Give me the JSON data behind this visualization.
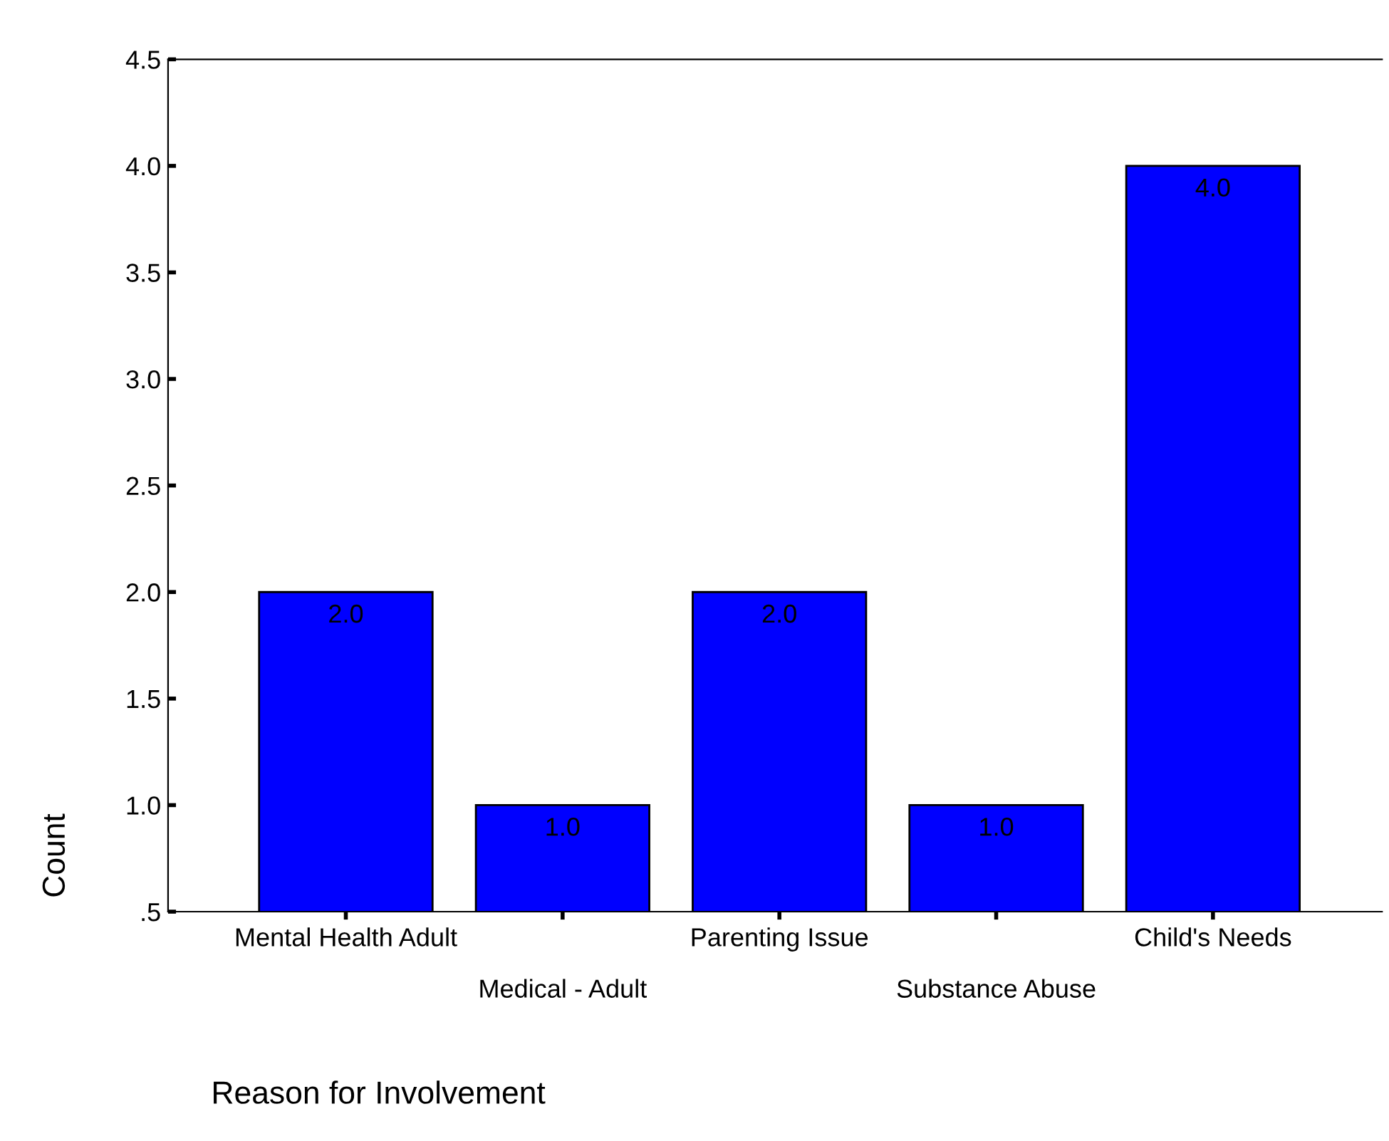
{
  "chart_data": {
    "type": "bar",
    "xlabel": "Reason for Involvement",
    "ylabel": "Count",
    "categories": [
      "Mental Health Adult",
      "Medical - Adult",
      "Parenting Issue",
      "Substance Abuse",
      "Child's Needs"
    ],
    "values": [
      2.0,
      1.0,
      2.0,
      1.0,
      4.0
    ],
    "value_labels": [
      "2.0",
      "1.0",
      "2.0",
      "1.0",
      "4.0"
    ],
    "color": "#0000ff",
    "ylim": [
      0.5,
      4.5
    ],
    "yticks": [
      {
        "value": 0.5,
        "label": ".5"
      },
      {
        "value": 1.0,
        "label": "1.0"
      },
      {
        "value": 1.5,
        "label": "1.5"
      },
      {
        "value": 2.0,
        "label": "2.0"
      },
      {
        "value": 2.5,
        "label": "2.5"
      },
      {
        "value": 3.0,
        "label": "3.0"
      },
      {
        "value": 3.5,
        "label": "3.5"
      },
      {
        "value": 4.0,
        "label": "4.0"
      },
      {
        "value": 4.5,
        "label": "4.5"
      }
    ],
    "grid": false
  }
}
